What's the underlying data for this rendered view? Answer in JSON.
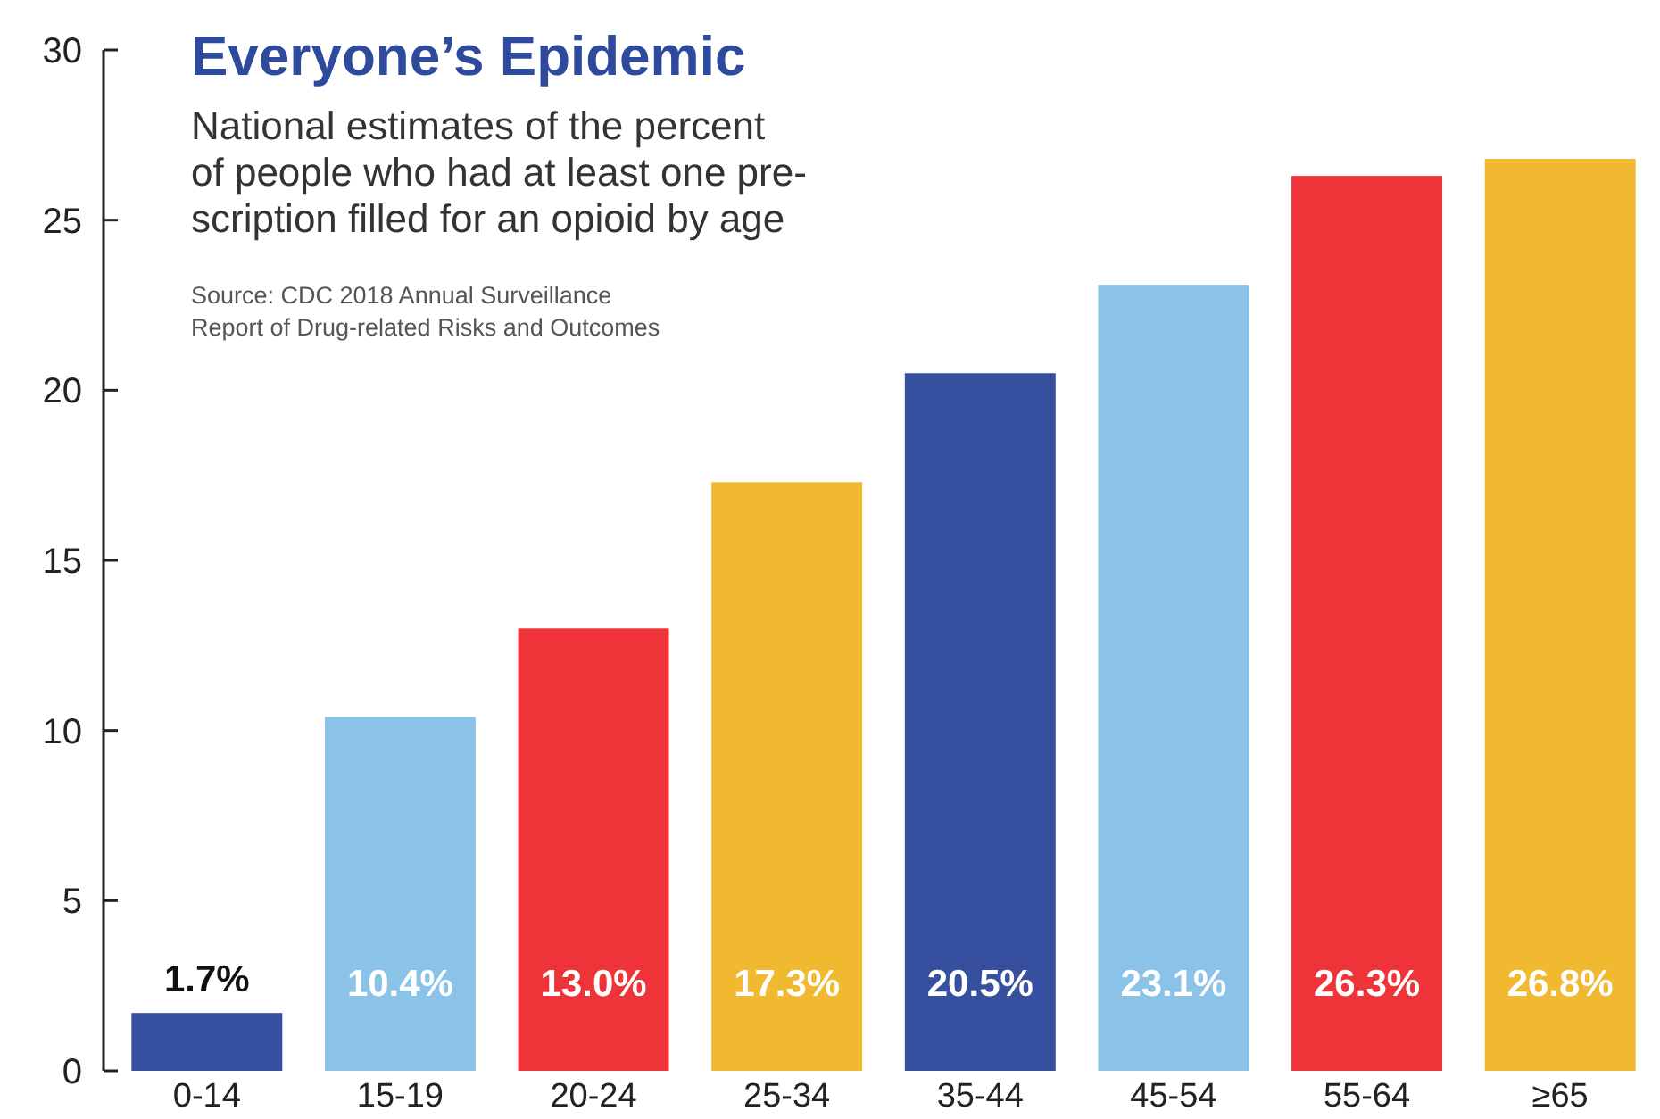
{
  "chart_data": {
    "type": "bar",
    "title": "Everyone’s Epidemic",
    "subtitle": "National estimates of the percent\nof people who had at least one pre-\nscription filled for an opioid by age",
    "annotations": [
      "Source: CDC 2018 Annual Surveillance\nReport of Drug-related Risks and Outcomes"
    ],
    "categories": [
      "0-14",
      "15-19",
      "20-24",
      "25-34",
      "35-44",
      "45-54",
      "55-64",
      "≥65"
    ],
    "values": [
      1.7,
      10.4,
      13.0,
      17.3,
      20.5,
      23.1,
      26.3,
      26.8
    ],
    "colors": [
      "#364f9e",
      "#8bc2e8",
      "#ee3439",
      "#f0b930",
      "#364f9e",
      "#8bc2e8",
      "#ee3439",
      "#f0b930"
    ],
    "value_labels": [
      "1.7%",
      "10.4%",
      "13.0%",
      "17.3%",
      "20.5%",
      "23.1%",
      "26.3%",
      "26.8%"
    ],
    "ylim": [
      0,
      30
    ],
    "yticks": [
      0,
      5,
      10,
      15,
      20,
      25,
      30
    ]
  }
}
